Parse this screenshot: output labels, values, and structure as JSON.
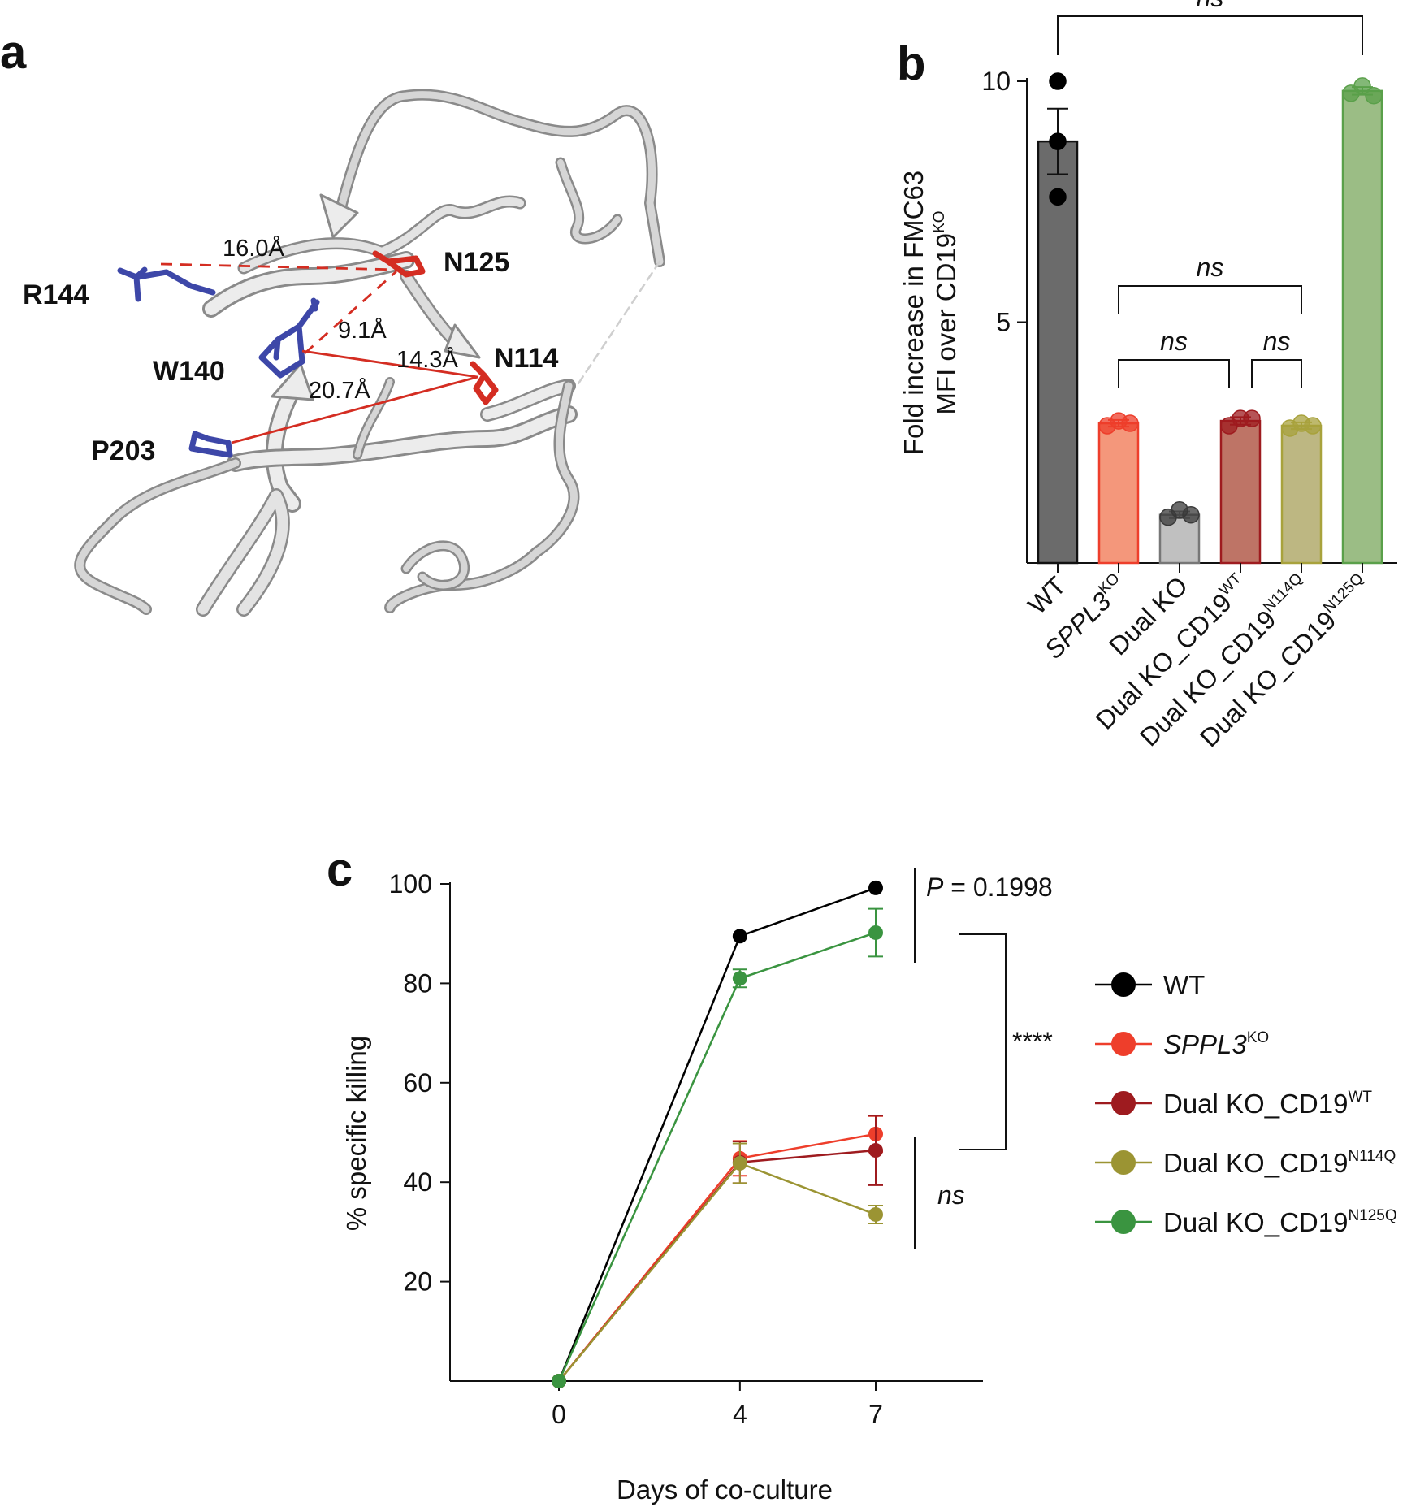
{
  "panels": {
    "a": {
      "letter": "a",
      "residues": [
        {
          "id": "r144",
          "label": "R144",
          "color": "#3d47a8"
        },
        {
          "id": "w140",
          "label": "W140",
          "color": "#3d47a8"
        },
        {
          "id": "p203",
          "label": "P203",
          "color": "#3d47a8"
        },
        {
          "id": "n125",
          "label": "N125",
          "color": "#d42d22"
        },
        {
          "id": "n114",
          "label": "N114",
          "color": "#d42d22"
        }
      ],
      "distances": [
        {
          "id": "d1",
          "label": "16.0Å",
          "from": "R144",
          "to": "N125",
          "dashed": true
        },
        {
          "id": "d2",
          "label": "9.1Å",
          "from": "W140",
          "to": "N125",
          "dashed": true
        },
        {
          "id": "d3",
          "label": "14.3Å",
          "from": "W140",
          "to": "N114",
          "dashed": false
        },
        {
          "id": "d4",
          "label": "20.7Å",
          "from": "P203",
          "to": "N114",
          "dashed": false
        }
      ],
      "line_color": "#d42d22"
    },
    "b": {
      "letter": "b"
    },
    "c": {
      "letter": "c"
    }
  },
  "chart_data": [
    {
      "panel": "b",
      "type": "bar",
      "ylabel_line1": "Fold increase in FMC63",
      "ylabel_line2_main": "MFI over CD19",
      "ylabel_line2_sup": "KO",
      "ylim": [
        0,
        10.5
      ],
      "yticks": [
        5,
        10
      ],
      "categories": [
        {
          "main": "WT",
          "sup": "",
          "italic": false
        },
        {
          "main": "SPPL3",
          "sup": "KO",
          "italic": true
        },
        {
          "main": "Dual KO",
          "sup": "",
          "italic": false
        },
        {
          "main": "Dual KO_CD19",
          "sup": "WT",
          "italic": false
        },
        {
          "main": "Dual KO_CD19",
          "sup": "N114Q",
          "italic": false
        },
        {
          "main": "Dual KO_CD19",
          "sup": "N125Q",
          "italic": false
        }
      ],
      "values": [
        8.75,
        2.9,
        1.0,
        2.95,
        2.85,
        9.8
      ],
      "errors": [
        0.68,
        0.07,
        0.07,
        0.08,
        0.07,
        0.08
      ],
      "points": [
        [
          10.0,
          8.75,
          7.6
        ],
        [
          2.85,
          2.95,
          2.9
        ],
        [
          0.95,
          1.1,
          1.0
        ],
        [
          2.85,
          3.0,
          3.0
        ],
        [
          2.8,
          2.9,
          2.85
        ],
        [
          9.75,
          9.9,
          9.7
        ]
      ],
      "fill_colors": [
        "#6b6b6b",
        "#f4977b",
        "#c0c0c0",
        "#be7466",
        "#bdb782",
        "#9bbd85"
      ],
      "edge_colors": [
        "#111111",
        "#ee3e2b",
        "#777777",
        "#9e1b1f",
        "#a8a23c",
        "#5aa04a"
      ],
      "point_colors": [
        "#000000",
        "#ee3e2b",
        "#3a3a3a",
        "#9e1b1f",
        "#a8a23c",
        "#5aa04a"
      ],
      "significance": [
        {
          "from": 0,
          "to": 5,
          "label": "ns",
          "level": 0
        },
        {
          "from": 1,
          "to": 4,
          "label": "ns",
          "level": 1
        },
        {
          "from": 1,
          "to": 3,
          "label": "ns",
          "level": 2
        },
        {
          "from": 3,
          "to": 4,
          "label": "ns",
          "level": 2
        }
      ]
    },
    {
      "panel": "c",
      "type": "line",
      "xlabel": "Days of co-culture",
      "ylabel": "% specific killing",
      "x": [
        0,
        4,
        7
      ],
      "xlim": [
        -2.7,
        10.3
      ],
      "ylim": [
        0,
        100
      ],
      "yticks": [
        20,
        40,
        60,
        80,
        100
      ],
      "series": [
        {
          "name": "WT",
          "sup": "",
          "italic": false,
          "color": "#000000",
          "values": [
            0,
            89.5,
            99.2
          ],
          "errors": [
            0,
            0.3,
            0.3
          ]
        },
        {
          "name": "SPPL3",
          "sup": "KO",
          "italic": true,
          "color": "#ee3e2b",
          "values": [
            0,
            44.8,
            49.7
          ],
          "errors": [
            0,
            3.5,
            3.6
          ]
        },
        {
          "name": "Dual KO_CD19",
          "sup": "WT",
          "italic": false,
          "color": "#9e1b1f",
          "values": [
            0,
            44.0,
            46.4
          ],
          "errors": [
            0,
            4.2,
            7.0
          ]
        },
        {
          "name": "Dual KO_CD19",
          "sup": "N114Q",
          "italic": false,
          "color": "#9b9433",
          "values": [
            0,
            43.8,
            33.5
          ],
          "errors": [
            0,
            4.0,
            1.8
          ]
        },
        {
          "name": "Dual KO_CD19",
          "sup": "N125Q",
          "italic": false,
          "color": "#3a9440",
          "values": [
            0,
            81.0,
            90.2
          ],
          "errors": [
            0,
            1.8,
            4.8
          ]
        }
      ],
      "annotations": [
        {
          "id": "p-value",
          "label_main": "P",
          "label_rest": " = 0.1998"
        },
        {
          "id": "stars",
          "label": "****"
        },
        {
          "id": "ns-c",
          "label": "ns"
        }
      ]
    }
  ]
}
